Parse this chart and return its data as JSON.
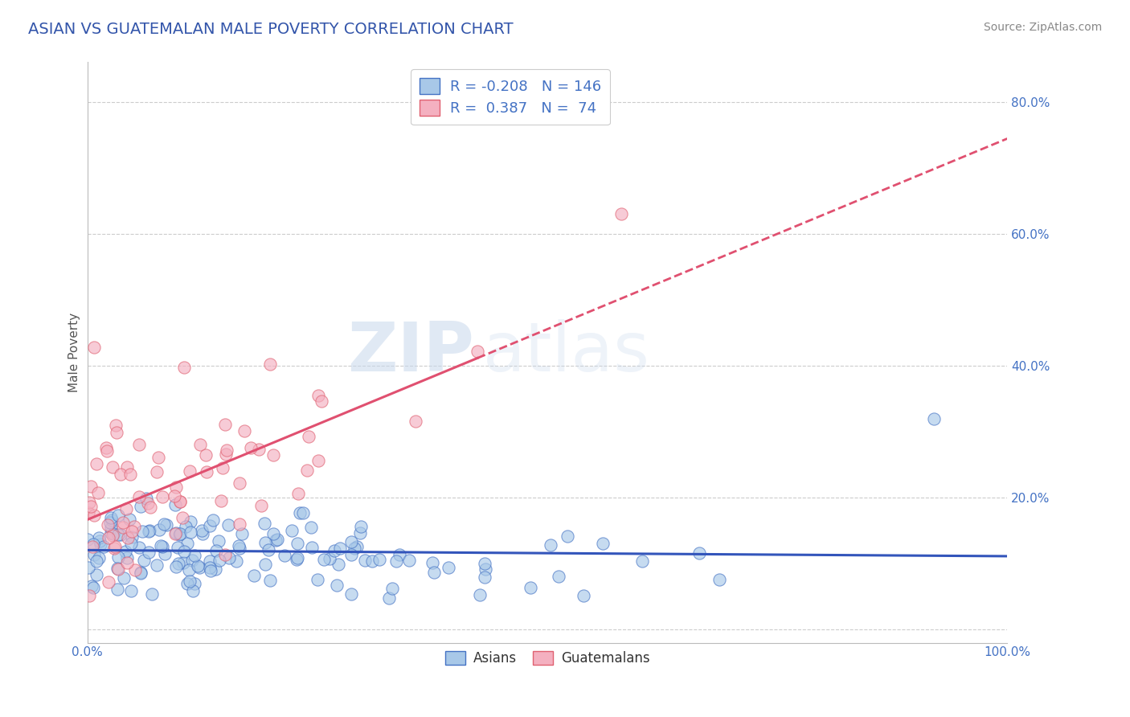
{
  "title": "ASIAN VS GUATEMALAN MALE POVERTY CORRELATION CHART",
  "source_text": "Source: ZipAtlas.com",
  "ylabel": "Male Poverty",
  "xlim": [
    0,
    1
  ],
  "ylim": [
    -0.02,
    0.86
  ],
  "ytick_positions": [
    0.0,
    0.2,
    0.4,
    0.6,
    0.8
  ],
  "ytick_labels": [
    "",
    "20.0%",
    "40.0%",
    "60.0%",
    "80.0%"
  ],
  "xtick_labels": [
    "0.0%",
    "100.0%"
  ],
  "asian_fill": "#a8c8e8",
  "asian_edge": "#4472c4",
  "guatemalan_fill": "#f4b0c0",
  "guatemalan_edge": "#e06070",
  "asian_line_color": "#3355bb",
  "guatemalan_line_color": "#e05070",
  "R_asian": -0.208,
  "N_asian": 146,
  "R_guatemalan": 0.387,
  "N_guatemalan": 74,
  "watermark_zip": "ZIP",
  "watermark_atlas": "atlas",
  "background_color": "#ffffff",
  "grid_color": "#cccccc",
  "title_color": "#3355aa",
  "title_fontsize": 14,
  "source_fontsize": 10,
  "axis_label_color": "#555555",
  "tick_label_color": "#4472c4"
}
